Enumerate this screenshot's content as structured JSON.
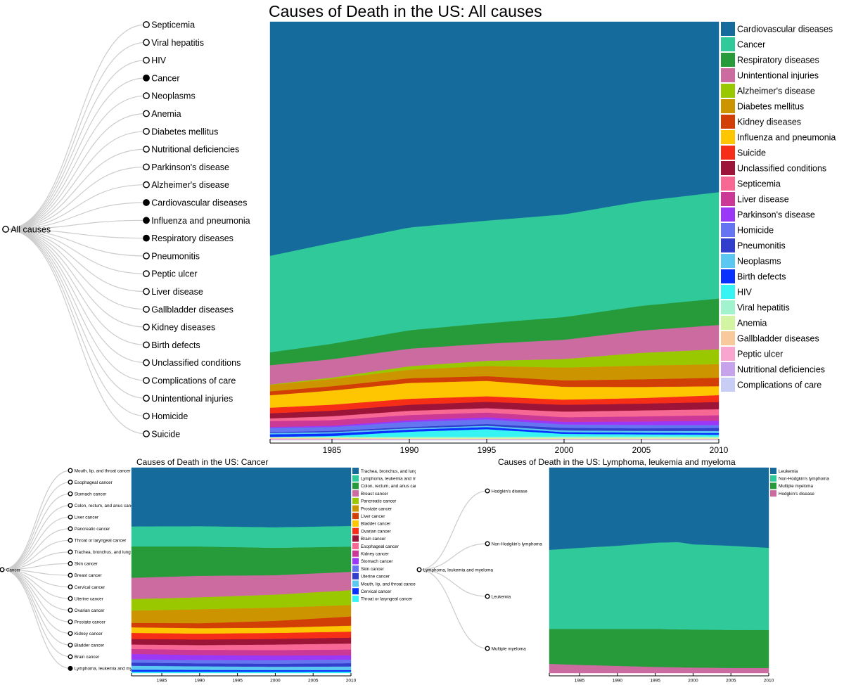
{
  "colors": {
    "link": "#cccccc",
    "node_stroke": "#000000"
  },
  "main": {
    "title": "Causes of Death in the US: All causes",
    "root_label": "All causes",
    "tree_nodes": [
      {
        "label": "Septicemia",
        "filled": false
      },
      {
        "label": "Viral hepatitis",
        "filled": false
      },
      {
        "label": "HIV",
        "filled": false
      },
      {
        "label": "Cancer",
        "filled": true
      },
      {
        "label": "Neoplasms",
        "filled": false
      },
      {
        "label": "Anemia",
        "filled": false
      },
      {
        "label": "Diabetes mellitus",
        "filled": false
      },
      {
        "label": "Nutritional deficiencies",
        "filled": false
      },
      {
        "label": "Parkinson's disease",
        "filled": false
      },
      {
        "label": "Alzheimer's disease",
        "filled": false
      },
      {
        "label": "Cardiovascular diseases",
        "filled": true
      },
      {
        "label": "Influenza and pneumonia",
        "filled": true
      },
      {
        "label": "Respiratory diseases",
        "filled": true
      },
      {
        "label": "Pneumonitis",
        "filled": false
      },
      {
        "label": "Peptic ulcer",
        "filled": false
      },
      {
        "label": "Liver disease",
        "filled": false
      },
      {
        "label": "Gallbladder diseases",
        "filled": false
      },
      {
        "label": "Kidney diseases",
        "filled": false
      },
      {
        "label": "Birth defects",
        "filled": false
      },
      {
        "label": "Unclassified conditions",
        "filled": false
      },
      {
        "label": "Complications of care",
        "filled": false
      },
      {
        "label": "Unintentional injuries",
        "filled": false
      },
      {
        "label": "Homicide",
        "filled": false
      },
      {
        "label": "Suicide",
        "filled": false
      }
    ]
  },
  "cancer": {
    "title": "Causes of Death in the US: Cancer",
    "root_label": "Cancer",
    "tree_nodes": [
      {
        "label": "Mouth, lip, and throat cancer",
        "filled": false
      },
      {
        "label": "Esophageal cancer",
        "filled": false
      },
      {
        "label": "Stomach cancer",
        "filled": false
      },
      {
        "label": "Colon, rectum, and anus cancer",
        "filled": false
      },
      {
        "label": "Liver cancer",
        "filled": false
      },
      {
        "label": "Pancreatic cancer",
        "filled": false
      },
      {
        "label": "Throat or laryngeal cancer",
        "filled": false
      },
      {
        "label": "Trachea, bronchus, and lung cancer",
        "filled": false
      },
      {
        "label": "Skin cancer",
        "filled": false
      },
      {
        "label": "Breast cancer",
        "filled": false
      },
      {
        "label": "Cervical cancer",
        "filled": false
      },
      {
        "label": "Uterine cancer",
        "filled": false
      },
      {
        "label": "Ovarian cancer",
        "filled": false
      },
      {
        "label": "Prostate cancer",
        "filled": false
      },
      {
        "label": "Kidney cancer",
        "filled": false
      },
      {
        "label": "Bladder cancer",
        "filled": false
      },
      {
        "label": "Brain cancer",
        "filled": false
      },
      {
        "label": "Lymphoma, leukemia and myeloma",
        "filled": true
      }
    ]
  },
  "lymphoma": {
    "title": "Causes of Death in the US: Lymphoma, leukemia and myeloma",
    "root_label": "Lymphoma, leukemia and myeloma",
    "tree_nodes": [
      {
        "label": "Hodgkin's disease",
        "filled": false
      },
      {
        "label": "Non-Hodgkin's lymphoma",
        "filled": false
      },
      {
        "label": "Leukemia",
        "filled": false
      },
      {
        "label": "Multiple myeloma",
        "filled": false
      }
    ]
  },
  "chart_data": [
    {
      "type": "area",
      "title": "Causes of Death in the US: All causes",
      "xlim": [
        1981,
        2010
      ],
      "ylim": [
        0,
        1
      ],
      "x_ticks": [
        1985,
        1990,
        1995,
        2000,
        2005,
        2010
      ],
      "legend_position": "right",
      "x": [
        1981,
        1985,
        1990,
        1995,
        2000,
        2005,
        2010
      ],
      "series": [
        {
          "name": "Complications of care",
          "color": "#c7cdf5",
          "values": [
            0.001,
            0.001,
            0.001,
            0.001,
            0.001,
            0.001,
            0.001
          ]
        },
        {
          "name": "Nutritional deficiencies",
          "color": "#c6a3ea",
          "values": [
            0.001,
            0.001,
            0.001,
            0.001,
            0.001,
            0.001,
            0.001
          ]
        },
        {
          "name": "Peptic ulcer",
          "color": "#f8a6cf",
          "values": [
            0.002,
            0.002,
            0.001,
            0.001,
            0.001,
            0.001,
            0.001
          ]
        },
        {
          "name": "Gallbladder diseases",
          "color": "#f8c99a",
          "values": [
            0.001,
            0.001,
            0.001,
            0.001,
            0.001,
            0.001,
            0.001
          ]
        },
        {
          "name": "Anemia",
          "color": "#d3f5a3",
          "values": [
            0.002,
            0.002,
            0.002,
            0.002,
            0.002,
            0.002,
            0.002
          ]
        },
        {
          "name": "Viral hepatitis",
          "color": "#a0f3cc",
          "values": [
            0.001,
            0.001,
            0.002,
            0.002,
            0.003,
            0.003,
            0.003
          ]
        },
        {
          "name": "HIV",
          "color": "#36f4f4",
          "values": [
            0.0,
            0.002,
            0.012,
            0.018,
            0.006,
            0.005,
            0.004
          ]
        },
        {
          "name": "Birth defects",
          "color": "#0830ff",
          "values": [
            0.006,
            0.006,
            0.005,
            0.005,
            0.004,
            0.004,
            0.004
          ]
        },
        {
          "name": "Neoplasms",
          "color": "#5bc8f2",
          "values": [
            0.003,
            0.003,
            0.003,
            0.003,
            0.004,
            0.004,
            0.005
          ]
        },
        {
          "name": "Pneumonitis",
          "color": "#313fcc",
          "values": [
            0.002,
            0.003,
            0.003,
            0.004,
            0.006,
            0.006,
            0.007
          ]
        },
        {
          "name": "Homicide",
          "color": "#6574f0",
          "values": [
            0.01,
            0.009,
            0.012,
            0.011,
            0.008,
            0.008,
            0.007
          ]
        },
        {
          "name": "Parkinson's disease",
          "color": "#9b37f7",
          "values": [
            0.002,
            0.003,
            0.004,
            0.005,
            0.006,
            0.008,
            0.01
          ]
        },
        {
          "name": "Liver disease",
          "color": "#cc3895",
          "values": [
            0.014,
            0.013,
            0.012,
            0.011,
            0.011,
            0.012,
            0.013
          ]
        },
        {
          "name": "Septicemia",
          "color": "#f76994",
          "values": [
            0.006,
            0.009,
            0.01,
            0.01,
            0.013,
            0.014,
            0.014
          ]
        },
        {
          "name": "Unclassified conditions",
          "color": "#9c1437",
          "values": [
            0.012,
            0.013,
            0.014,
            0.015,
            0.016,
            0.016,
            0.017
          ]
        },
        {
          "name": "Suicide",
          "color": "#f62d17",
          "values": [
            0.013,
            0.014,
            0.014,
            0.013,
            0.012,
            0.013,
            0.016
          ]
        },
        {
          "name": "Influenza and pneumonia",
          "color": "#fdc600",
          "values": [
            0.029,
            0.033,
            0.037,
            0.036,
            0.03,
            0.026,
            0.021
          ]
        },
        {
          "name": "Kidney diseases",
          "color": "#d13f06",
          "values": [
            0.009,
            0.01,
            0.011,
            0.011,
            0.015,
            0.018,
            0.02
          ]
        },
        {
          "name": "Diabetes mellitus",
          "color": "#cc9500",
          "values": [
            0.015,
            0.017,
            0.02,
            0.024,
            0.03,
            0.032,
            0.032
          ]
        },
        {
          "name": "Alzheimer's disease",
          "color": "#99c800",
          "values": [
            0.001,
            0.003,
            0.008,
            0.012,
            0.02,
            0.03,
            0.035
          ]
        },
        {
          "name": "Unintentional injuries",
          "color": "#cb6ba0",
          "values": [
            0.045,
            0.043,
            0.041,
            0.04,
            0.045,
            0.052,
            0.057
          ]
        },
        {
          "name": "Respiratory diseases",
          "color": "#279a3a",
          "values": [
            0.03,
            0.036,
            0.043,
            0.048,
            0.053,
            0.058,
            0.062
          ]
        },
        {
          "name": "Cancer",
          "color": "#2fc99a",
          "values": [
            0.225,
            0.235,
            0.24,
            0.24,
            0.24,
            0.245,
            0.25
          ]
        },
        {
          "name": "Cardiovascular diseases",
          "color": "#156b9c",
          "values": [
            0.545,
            0.515,
            0.48,
            0.465,
            0.45,
            0.42,
            0.4
          ]
        }
      ]
    },
    {
      "type": "area",
      "title": "Causes of Death in the US: Cancer",
      "xlim": [
        1981,
        2010
      ],
      "ylim": [
        0,
        1
      ],
      "x_ticks": [
        1985,
        1990,
        1995,
        2000,
        2005,
        2010
      ],
      "legend_position": "right",
      "x": [
        1981,
        1990,
        2000,
        2010
      ],
      "series": [
        {
          "name": "Throat or laryngeal cancer",
          "color": "#36f4f4",
          "values": [
            0.006,
            0.006,
            0.006,
            0.006
          ]
        },
        {
          "name": "Cervical cancer",
          "color": "#0830ff",
          "values": [
            0.009,
            0.008,
            0.007,
            0.007
          ]
        },
        {
          "name": "Mouth, lip, and throat cancer",
          "color": "#5bc8f2",
          "values": [
            0.018,
            0.016,
            0.015,
            0.016
          ]
        },
        {
          "name": "Uterine cancer",
          "color": "#313fcc",
          "values": [
            0.014,
            0.013,
            0.013,
            0.014
          ]
        },
        {
          "name": "Skin cancer",
          "color": "#6574f0",
          "values": [
            0.014,
            0.015,
            0.016,
            0.016
          ]
        },
        {
          "name": "Stomach cancer",
          "color": "#9b37f7",
          "values": [
            0.025,
            0.022,
            0.02,
            0.019
          ]
        },
        {
          "name": "Kidney cancer",
          "color": "#cc3895",
          "values": [
            0.022,
            0.023,
            0.024,
            0.025
          ]
        },
        {
          "name": "Esophageal cancer",
          "color": "#f76994",
          "values": [
            0.02,
            0.021,
            0.024,
            0.026
          ]
        },
        {
          "name": "Brain cancer",
          "color": "#9c1437",
          "values": [
            0.025,
            0.025,
            0.025,
            0.026
          ]
        },
        {
          "name": "Ovarian cancer",
          "color": "#f62d17",
          "values": [
            0.027,
            0.026,
            0.026,
            0.026
          ]
        },
        {
          "name": "Bladder cancer",
          "color": "#fdc600",
          "values": [
            0.025,
            0.024,
            0.023,
            0.026
          ]
        },
        {
          "name": "Liver cancer",
          "color": "#d13f06",
          "values": [
            0.02,
            0.022,
            0.03,
            0.04
          ]
        },
        {
          "name": "Prostate cancer",
          "color": "#cc9500",
          "values": [
            0.055,
            0.062,
            0.058,
            0.05
          ]
        },
        {
          "name": "Pancreatic cancer",
          "color": "#99c800",
          "values": [
            0.052,
            0.053,
            0.057,
            0.065
          ]
        },
        {
          "name": "Breast cancer",
          "color": "#cb6ba0",
          "values": [
            0.095,
            0.095,
            0.085,
            0.08
          ]
        },
        {
          "name": "Colon, rectum, and anus cancer",
          "color": "#279a3a",
          "values": [
            0.14,
            0.13,
            0.12,
            0.11
          ]
        },
        {
          "name": "Lymphoma, leukemia and myeloma",
          "color": "#2fc99a",
          "values": [
            0.09,
            0.09,
            0.09,
            0.09
          ]
        },
        {
          "name": "Trachea, bronchus, and lung cancer",
          "color": "#156b9c",
          "values": [
            0.263,
            0.259,
            0.261,
            0.254
          ]
        }
      ]
    },
    {
      "type": "area",
      "title": "Causes of Death in the US: Lymphoma, leukemia and myeloma",
      "xlim": [
        1981,
        2010
      ],
      "ylim": [
        0,
        1
      ],
      "x_ticks": [
        1985,
        1990,
        1995,
        2000,
        2005,
        2010
      ],
      "legend_position": "right",
      "x": [
        1981,
        1985,
        1990,
        1995,
        1998,
        2000,
        2005,
        2010
      ],
      "series": [
        {
          "name": "Hodgkin's disease",
          "color": "#cb6ba0",
          "values": [
            0.045,
            0.04,
            0.035,
            0.03,
            0.028,
            0.027,
            0.025,
            0.025
          ]
        },
        {
          "name": "Multiple myeloma",
          "color": "#279a3a",
          "values": [
            0.17,
            0.175,
            0.18,
            0.185,
            0.185,
            0.185,
            0.185,
            0.185
          ]
        },
        {
          "name": "Non-Hodgkin's lymphoma",
          "color": "#2fc99a",
          "values": [
            0.385,
            0.395,
            0.405,
            0.42,
            0.425,
            0.415,
            0.41,
            0.4
          ]
        },
        {
          "name": "Leukemia",
          "color": "#156b9c",
          "values": [
            0.4,
            0.39,
            0.38,
            0.365,
            0.362,
            0.373,
            0.38,
            0.39
          ]
        }
      ]
    }
  ]
}
